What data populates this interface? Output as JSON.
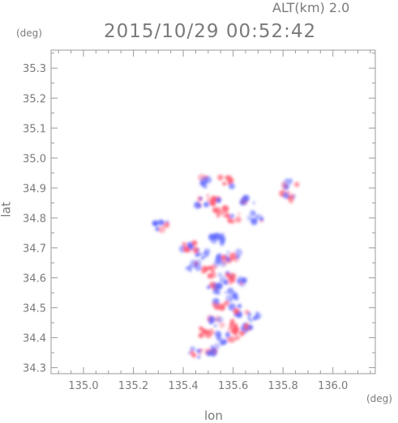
{
  "header": {
    "altitude": "ALT(km) 2.0",
    "timestamp": "2015/10/29 00:52:42",
    "y_unit": "(deg)",
    "x_unit": "(deg)"
  },
  "chart_data": {
    "type": "heatmap",
    "title": "2015/10/29 00:52:42",
    "subtitle": "ALT(km) 2.0",
    "xlabel": "lon",
    "ylabel": "lat",
    "xlim": [
      134.87,
      136.17
    ],
    "ylim": [
      34.28,
      35.36
    ],
    "xticks": [
      "135.0",
      "135.2",
      "135.4",
      "135.6",
      "135.8",
      "136.0"
    ],
    "yticks": [
      "34.3",
      "34.4",
      "34.5",
      "34.6",
      "34.7",
      "34.8",
      "34.9",
      "35.0",
      "35.1",
      "35.2",
      "35.3"
    ],
    "grid": false,
    "colors": {
      "positive": "#ff5a6e",
      "negative": "#5a64ff",
      "frame": "#9a9a9a"
    },
    "clusters": [
      {
        "lon": 135.49,
        "lat": 34.92,
        "sign": -1
      },
      {
        "lon": 135.57,
        "lat": 34.92,
        "sign": 1
      },
      {
        "lon": 135.83,
        "lat": 34.91,
        "sign": -1
      },
      {
        "lon": 135.52,
        "lat": 34.86,
        "sign": 1
      },
      {
        "lon": 135.47,
        "lat": 34.85,
        "sign": -1
      },
      {
        "lon": 135.66,
        "lat": 34.86,
        "sign": -1
      },
      {
        "lon": 135.82,
        "lat": 34.87,
        "sign": 1
      },
      {
        "lon": 135.55,
        "lat": 34.82,
        "sign": 1
      },
      {
        "lon": 135.6,
        "lat": 34.8,
        "sign": 1
      },
      {
        "lon": 135.69,
        "lat": 34.8,
        "sign": -1
      },
      {
        "lon": 135.31,
        "lat": 34.77,
        "sign": -1
      },
      {
        "lon": 135.54,
        "lat": 34.73,
        "sign": -1
      },
      {
        "lon": 135.42,
        "lat": 34.7,
        "sign": 1
      },
      {
        "lon": 135.47,
        "lat": 34.68,
        "sign": -1
      },
      {
        "lon": 135.55,
        "lat": 34.66,
        "sign": -1
      },
      {
        "lon": 135.6,
        "lat": 34.67,
        "sign": 1
      },
      {
        "lon": 135.44,
        "lat": 34.64,
        "sign": -1
      },
      {
        "lon": 135.5,
        "lat": 34.62,
        "sign": 1
      },
      {
        "lon": 135.57,
        "lat": 34.6,
        "sign": -1
      },
      {
        "lon": 135.62,
        "lat": 34.59,
        "sign": 1
      },
      {
        "lon": 135.52,
        "lat": 34.56,
        "sign": -1
      },
      {
        "lon": 135.59,
        "lat": 34.54,
        "sign": -1
      },
      {
        "lon": 135.55,
        "lat": 34.51,
        "sign": 1
      },
      {
        "lon": 135.61,
        "lat": 34.49,
        "sign": -1
      },
      {
        "lon": 135.68,
        "lat": 34.47,
        "sign": -1
      },
      {
        "lon": 135.53,
        "lat": 34.45,
        "sign": -1
      },
      {
        "lon": 135.6,
        "lat": 34.44,
        "sign": 1
      },
      {
        "lon": 135.66,
        "lat": 34.43,
        "sign": -1
      },
      {
        "lon": 135.49,
        "lat": 34.42,
        "sign": 1
      },
      {
        "lon": 135.56,
        "lat": 34.4,
        "sign": -1
      },
      {
        "lon": 135.62,
        "lat": 34.41,
        "sign": 1
      },
      {
        "lon": 135.52,
        "lat": 34.36,
        "sign": -1
      },
      {
        "lon": 135.45,
        "lat": 34.35,
        "sign": -1
      }
    ]
  }
}
